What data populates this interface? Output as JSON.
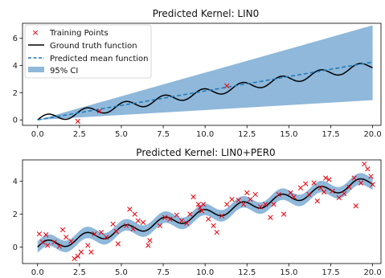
{
  "colors": {
    "ci_fill": "#8fb8da",
    "ground_truth": "#000000",
    "pred_mean": "#1f77b4",
    "training_points": "#e8000b"
  },
  "legend": {
    "training": "Training Points",
    "ground_truth": "Ground truth function",
    "pred_mean": "Predicted mean function",
    "ci": "95% CI"
  },
  "chart_data": [
    {
      "type": "line",
      "title": "Predicted Kernel: LIN0",
      "xlabel": "",
      "ylabel": "",
      "xlim": [
        -0.9,
        20.5
      ],
      "ylim": [
        -0.4,
        7.1
      ],
      "x_ticks": [
        0.0,
        2.5,
        5.0,
        7.5,
        10.0,
        12.5,
        15.0,
        17.5,
        20.0
      ],
      "x_tick_labels": [
        "0.0",
        "2.5",
        "5.0",
        "7.5",
        "10.0",
        "12.5",
        "15.0",
        "17.5",
        "20.0"
      ],
      "y_ticks": [
        0,
        2,
        4,
        6
      ],
      "y_tick_labels": [
        "0",
        "2",
        "4",
        "6"
      ],
      "legend_position": "top-left",
      "ground_truth": "y = 0.2x + 0.3·sin(2.7x)",
      "predicted_mean": {
        "x": [
          0,
          20
        ],
        "y": [
          0.0,
          4.25
        ]
      },
      "ci_95": {
        "x": [
          0,
          20
        ],
        "lower": [
          0.0,
          1.45
        ],
        "upper": [
          0.0,
          6.95
        ]
      },
      "training_points": [
        {
          "x": 2.4,
          "y": -0.1
        },
        {
          "x": 3.7,
          "y": 0.65
        },
        {
          "x": 11.3,
          "y": 2.5
        }
      ]
    },
    {
      "type": "line",
      "title": "Predicted Kernel: LIN0+PER0",
      "xlabel": "",
      "ylabel": "",
      "xlim": [
        -0.9,
        20.5
      ],
      "ylim": [
        -1.0,
        5.3
      ],
      "x_ticks": [
        0.0,
        2.5,
        5.0,
        7.5,
        10.0,
        12.5,
        15.0,
        17.5,
        20.0
      ],
      "x_tick_labels": [
        "0.0",
        "2.5",
        "5.0",
        "7.5",
        "10.0",
        "12.5",
        "15.0",
        "17.5",
        "20.0"
      ],
      "y_ticks": [
        0,
        2,
        4
      ],
      "y_tick_labels": [
        "0",
        "2",
        "4"
      ],
      "ground_truth": "y = 0.2x + 0.3·sin(2.7x)",
      "ci_half_width": 0.35,
      "training_points": [
        {
          "x": 0.1,
          "y": 0.8
        },
        {
          "x": 0.3,
          "y": 0.3
        },
        {
          "x": 0.5,
          "y": 0.75
        },
        {
          "x": 0.6,
          "y": 0.1
        },
        {
          "x": 1.0,
          "y": 0.3
        },
        {
          "x": 1.3,
          "y": 0.05
        },
        {
          "x": 1.5,
          "y": 1.05
        },
        {
          "x": 1.7,
          "y": 0.6
        },
        {
          "x": 2.0,
          "y": 0.35
        },
        {
          "x": 2.2,
          "y": -0.7
        },
        {
          "x": 2.4,
          "y": -0.55
        },
        {
          "x": 2.6,
          "y": -0.3
        },
        {
          "x": 3.0,
          "y": 0.1
        },
        {
          "x": 3.2,
          "y": -0.3
        },
        {
          "x": 3.4,
          "y": 0.8
        },
        {
          "x": 3.8,
          "y": 0.9
        },
        {
          "x": 4.1,
          "y": 0.6
        },
        {
          "x": 4.5,
          "y": 1.4
        },
        {
          "x": 4.7,
          "y": 0.95
        },
        {
          "x": 4.8,
          "y": 0.2
        },
        {
          "x": 5.3,
          "y": 1.3
        },
        {
          "x": 5.5,
          "y": 2.3
        },
        {
          "x": 5.7,
          "y": 1.1
        },
        {
          "x": 5.8,
          "y": 2.0
        },
        {
          "x": 6.0,
          "y": 1.6
        },
        {
          "x": 6.3,
          "y": 1.5
        },
        {
          "x": 6.6,
          "y": 0.1
        },
        {
          "x": 6.7,
          "y": 0.4
        },
        {
          "x": 7.3,
          "y": 1.3
        },
        {
          "x": 7.6,
          "y": 1.8
        },
        {
          "x": 7.9,
          "y": 1.7
        },
        {
          "x": 8.3,
          "y": 1.95
        },
        {
          "x": 8.6,
          "y": 1.6
        },
        {
          "x": 8.9,
          "y": 1.45
        },
        {
          "x": 9.1,
          "y": 2.0
        },
        {
          "x": 9.3,
          "y": 3.05
        },
        {
          "x": 9.6,
          "y": 2.6
        },
        {
          "x": 9.7,
          "y": 2.4
        },
        {
          "x": 9.8,
          "y": 2.2
        },
        {
          "x": 9.9,
          "y": 2.6
        },
        {
          "x": 10.2,
          "y": 1.7
        },
        {
          "x": 10.5,
          "y": 1.3
        },
        {
          "x": 10.7,
          "y": 0.9
        },
        {
          "x": 11.0,
          "y": 1.9
        },
        {
          "x": 11.3,
          "y": 2.6
        },
        {
          "x": 11.6,
          "y": 2.9
        },
        {
          "x": 12.0,
          "y": 2.85
        },
        {
          "x": 12.3,
          "y": 2.6
        },
        {
          "x": 12.5,
          "y": 3.3
        },
        {
          "x": 12.7,
          "y": 2.9
        },
        {
          "x": 13.0,
          "y": 3.2
        },
        {
          "x": 13.3,
          "y": 2.45
        },
        {
          "x": 13.6,
          "y": 2.6
        },
        {
          "x": 13.9,
          "y": 1.8
        },
        {
          "x": 14.1,
          "y": 2.6
        },
        {
          "x": 14.4,
          "y": 3.2
        },
        {
          "x": 14.7,
          "y": 2.0
        },
        {
          "x": 15.1,
          "y": 3.3
        },
        {
          "x": 15.3,
          "y": 3.05
        },
        {
          "x": 15.7,
          "y": 3.6
        },
        {
          "x": 16.0,
          "y": 3.85
        },
        {
          "x": 16.2,
          "y": 3.2
        },
        {
          "x": 16.5,
          "y": 3.9
        },
        {
          "x": 16.7,
          "y": 2.8
        },
        {
          "x": 16.9,
          "y": 3.6
        },
        {
          "x": 17.1,
          "y": 3.35
        },
        {
          "x": 17.2,
          "y": 4.2
        },
        {
          "x": 17.4,
          "y": 4.1
        },
        {
          "x": 17.6,
          "y": 3.4
        },
        {
          "x": 18.0,
          "y": 3.0
        },
        {
          "x": 18.3,
          "y": 3.25
        },
        {
          "x": 18.6,
          "y": 3.65
        },
        {
          "x": 18.9,
          "y": 4.2
        },
        {
          "x": 19.0,
          "y": 2.5
        },
        {
          "x": 19.3,
          "y": 3.9
        },
        {
          "x": 19.5,
          "y": 5.05
        },
        {
          "x": 19.7,
          "y": 4.75
        },
        {
          "x": 19.9,
          "y": 4.3
        },
        {
          "x": 20.0,
          "y": 3.8
        }
      ]
    }
  ]
}
